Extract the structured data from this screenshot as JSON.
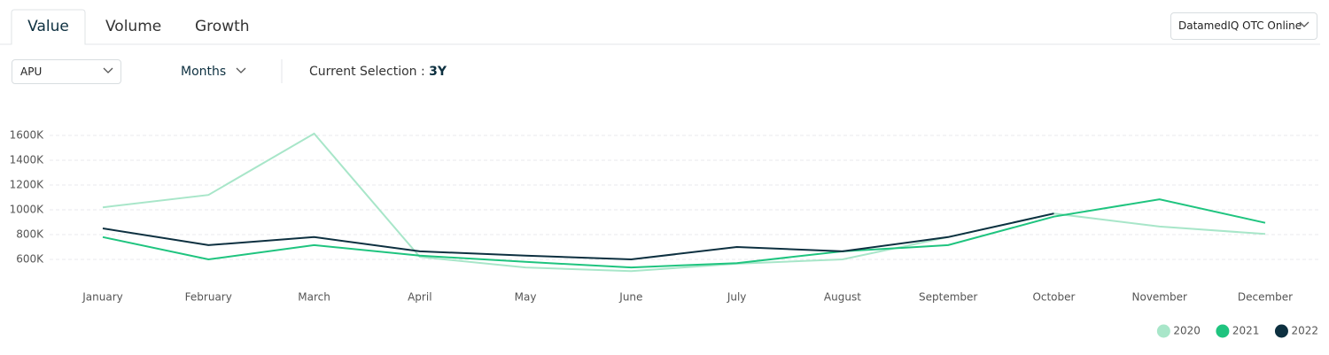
{
  "tabs": [
    "Value",
    "Volume",
    "Growth"
  ],
  "source_dropdown": "DatamedIQ OTC Online",
  "filters": {
    "metric": "APU",
    "period": "Months",
    "selection_label": "Current Selection :",
    "selection_value": "3Y"
  },
  "chart_data": {
    "type": "line",
    "categories": [
      "January",
      "February",
      "March",
      "April",
      "May",
      "June",
      "July",
      "August",
      "September",
      "October",
      "November",
      "December"
    ],
    "series": [
      {
        "name": "2020",
        "color": "#a8e6c9",
        "values": [
          1020000,
          1120000,
          1615000,
          620000,
          535000,
          505000,
          565000,
          600000,
          780000,
          970000,
          865000,
          805000
        ]
      },
      {
        "name": "2021",
        "color": "#1fc47f",
        "values": [
          780000,
          600000,
          715000,
          630000,
          580000,
          535000,
          570000,
          665000,
          715000,
          945000,
          1085000,
          895000
        ]
      },
      {
        "name": "2022",
        "color": "#0d3040",
        "values": [
          850000,
          715000,
          780000,
          665000,
          630000,
          600000,
          700000,
          665000,
          780000,
          970000,
          null,
          null
        ]
      }
    ],
    "ylim": [
      400000,
      1700000
    ],
    "yticks": [
      {
        "value": 600000,
        "label": "600K"
      },
      {
        "value": 800000,
        "label": "800K"
      },
      {
        "value": 1000000,
        "label": "1000K"
      },
      {
        "value": 1200000,
        "label": "1200K"
      },
      {
        "value": 1400000,
        "label": "1400K"
      },
      {
        "value": 1600000,
        "label": "1600K"
      }
    ],
    "grid": true
  }
}
